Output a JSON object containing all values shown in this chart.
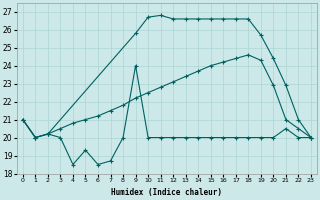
{
  "xlabel": "Humidex (Indice chaleur)",
  "xlim": [
    -0.5,
    23.5
  ],
  "ylim": [
    18,
    27.5
  ],
  "yticks": [
    18,
    19,
    20,
    21,
    22,
    23,
    24,
    25,
    26,
    27
  ],
  "xticks": [
    0,
    1,
    2,
    3,
    4,
    5,
    6,
    7,
    8,
    9,
    10,
    11,
    12,
    13,
    14,
    15,
    16,
    17,
    18,
    19,
    20,
    21,
    22,
    23
  ],
  "bg_color": "#cce8e8",
  "line_color": "#006060",
  "grid_color": "#add4d4",
  "line1_x": [
    0,
    1,
    2,
    3,
    4,
    5,
    6,
    7,
    8,
    9,
    10,
    11,
    12,
    13,
    14,
    15,
    16,
    17,
    18,
    19,
    20,
    21,
    22,
    23
  ],
  "line1_y": [
    21,
    20,
    20.2,
    20,
    18.5,
    19.3,
    18.5,
    18.7,
    20,
    24,
    20,
    20,
    20,
    20,
    20,
    20,
    20,
    20,
    20,
    20,
    20,
    20.5,
    20,
    20
  ],
  "line2_x": [
    0,
    1,
    2,
    3,
    4,
    5,
    6,
    7,
    8,
    9,
    10,
    11,
    12,
    13,
    14,
    15,
    16,
    17,
    18,
    19,
    20,
    21,
    22,
    23
  ],
  "line2_y": [
    21,
    20,
    20.2,
    20.5,
    20.8,
    21.0,
    21.2,
    21.5,
    21.8,
    22.2,
    22.5,
    22.8,
    23.1,
    23.4,
    23.7,
    24.0,
    24.2,
    24.4,
    24.6,
    24.3,
    22.9,
    21.0,
    20.5,
    20
  ],
  "line3_x": [
    0,
    1,
    2,
    9,
    10,
    11,
    12,
    13,
    14,
    15,
    16,
    17,
    18,
    19,
    20,
    21,
    22,
    23
  ],
  "line3_y": [
    21,
    20,
    20.2,
    25.8,
    26.7,
    26.8,
    26.6,
    26.6,
    26.6,
    26.6,
    26.6,
    26.6,
    26.6,
    25.7,
    24.4,
    22.9,
    21.0,
    20
  ]
}
